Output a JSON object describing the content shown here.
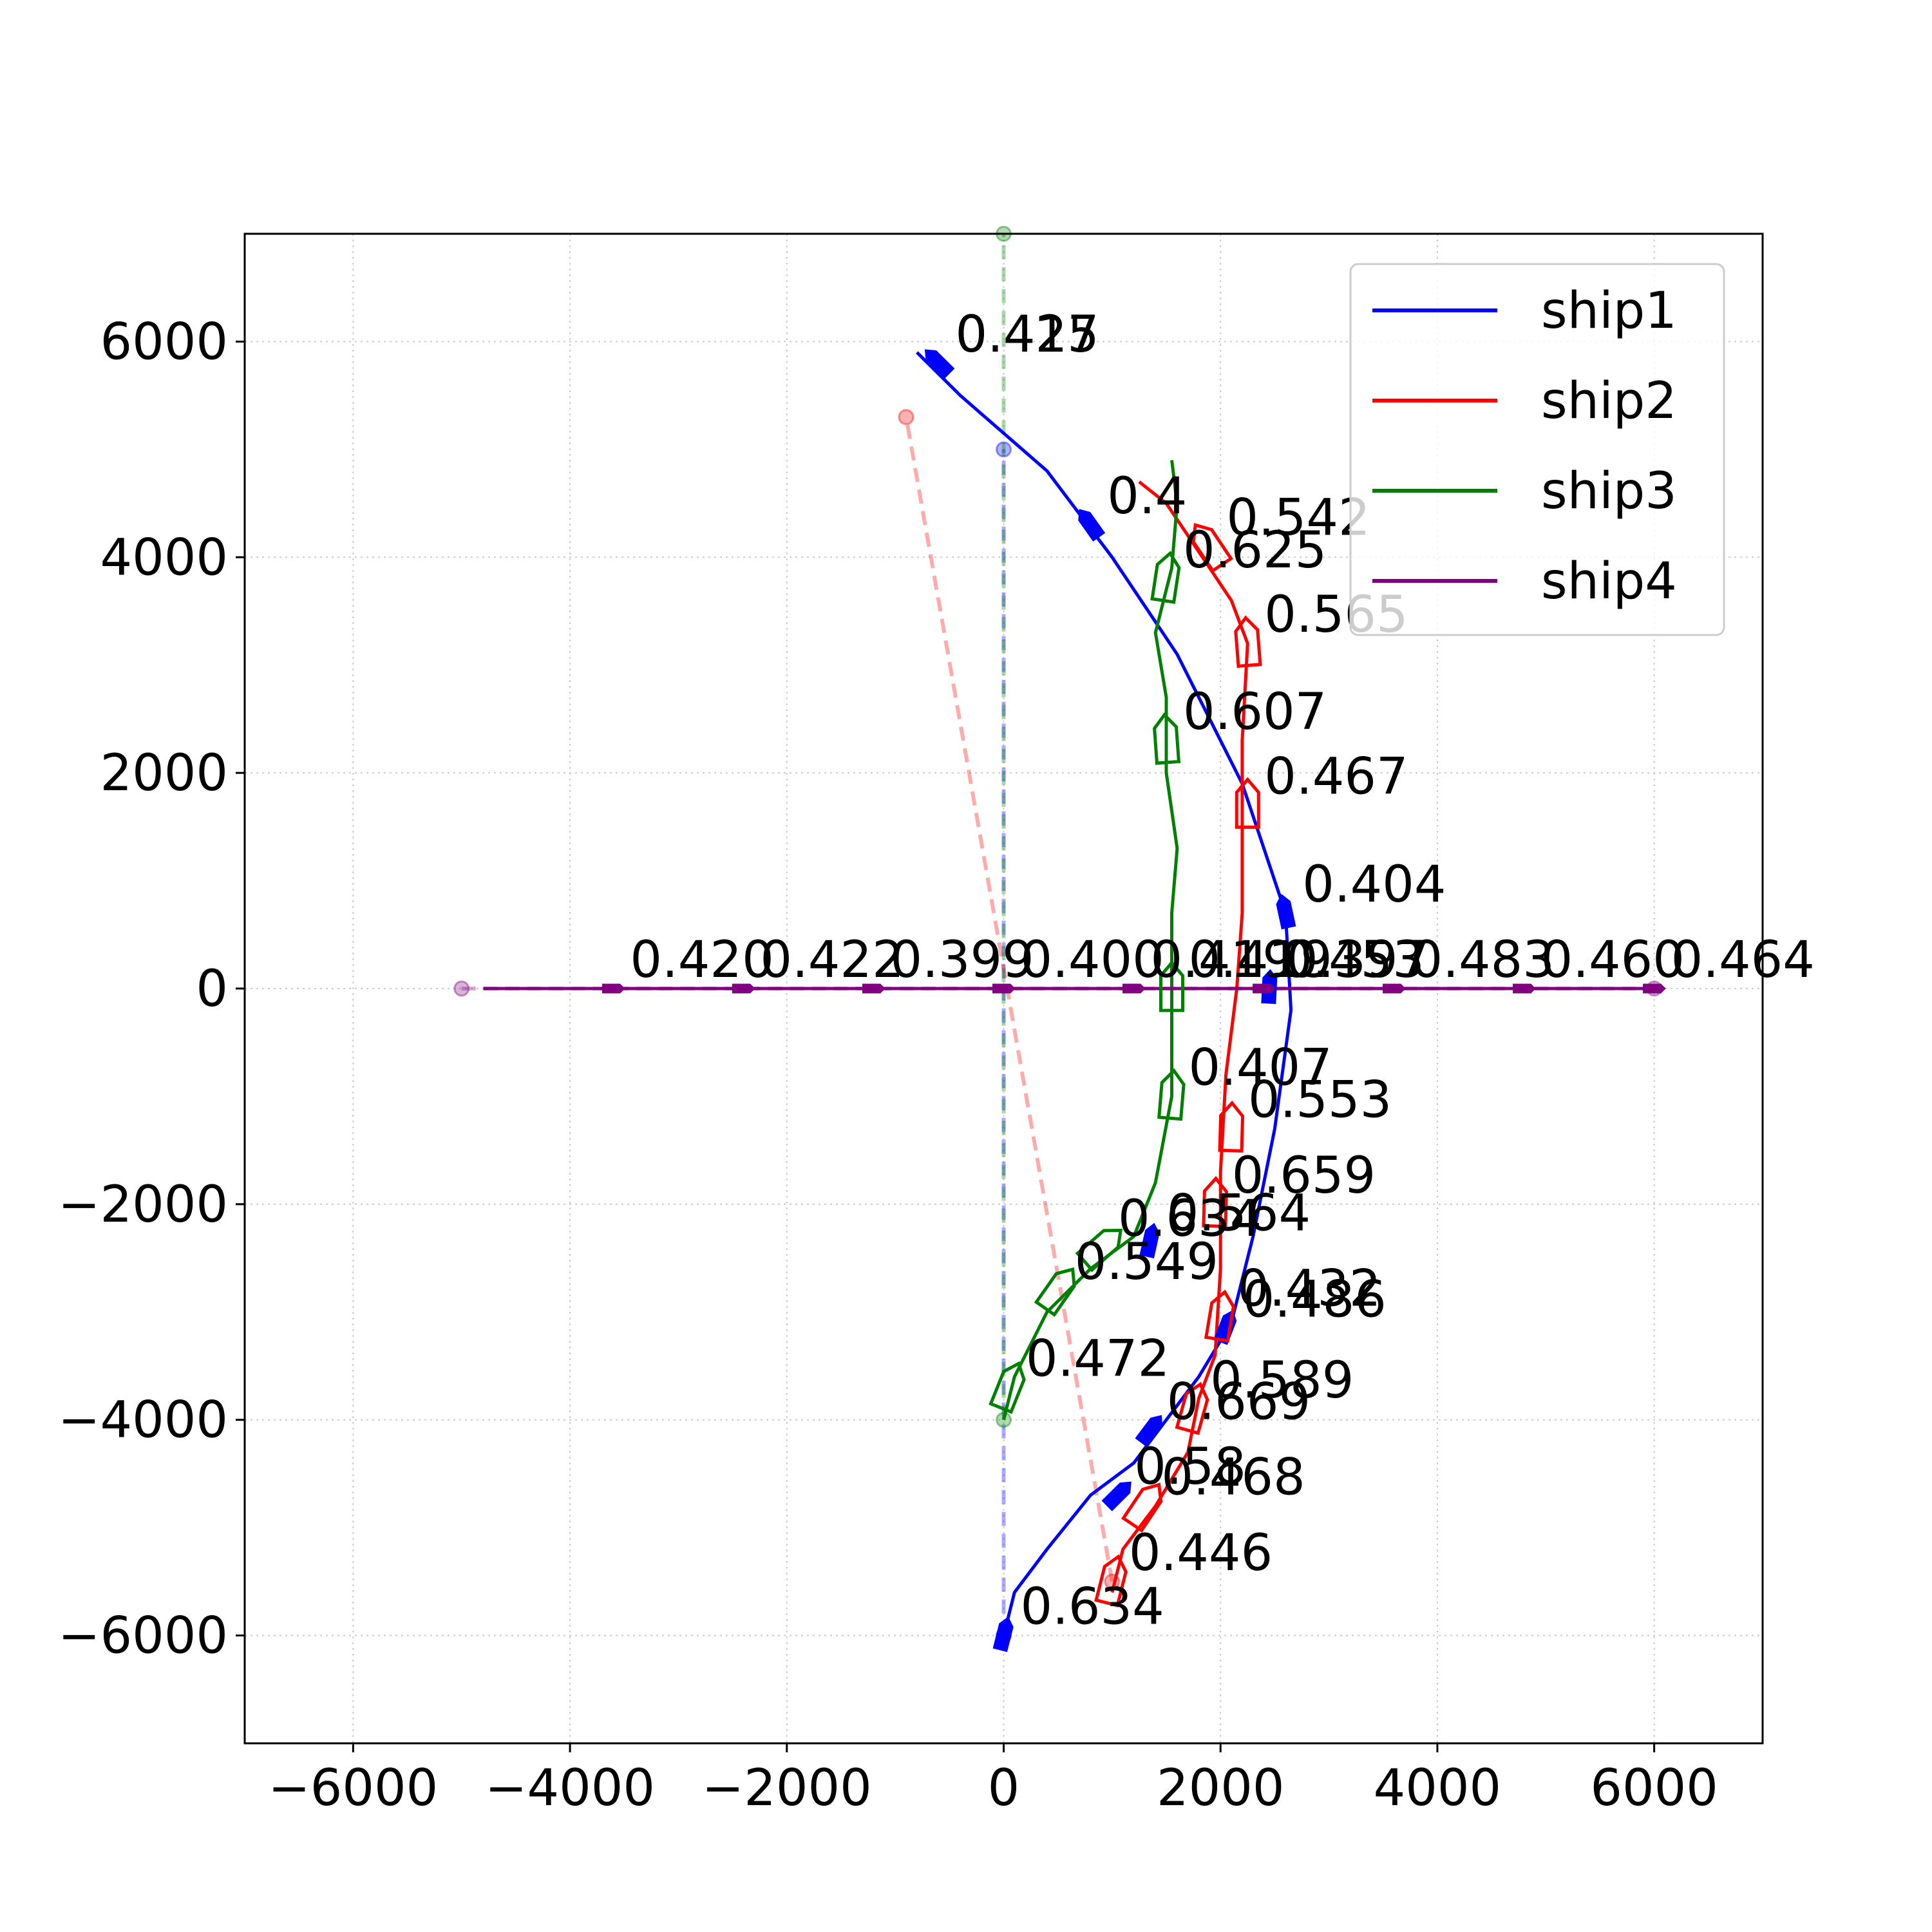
{
  "chart_data": {
    "type": "line",
    "title": "",
    "xlabel": "",
    "ylabel": "",
    "xlim": [
      -7000,
      7000
    ],
    "ylim": [
      -7000,
      7000
    ],
    "xticks": [
      -6000,
      -4000,
      -2000,
      0,
      2000,
      4000,
      6000
    ],
    "yticks": [
      -6000,
      -4000,
      -2000,
      0,
      2000,
      4000,
      6000
    ],
    "xtick_labels": [
      "−6000",
      "−4000",
      "−2000",
      "0",
      "2000",
      "4000",
      "6000"
    ],
    "ytick_labels": [
      "−6000",
      "−4000",
      "−2000",
      "0",
      "2000",
      "4000",
      "6000"
    ],
    "grid": true,
    "legend_position": "top-right",
    "series": [
      {
        "name": "ship1",
        "color": "#0000ff",
        "start": [
          0,
          -6000
        ],
        "goal": [
          0,
          5000
        ],
        "path": [
          [
            0,
            -6000
          ],
          [
            100,
            -5600
          ],
          [
            400,
            -5200
          ],
          [
            800,
            -4700
          ],
          [
            1200,
            -4400
          ],
          [
            1500,
            -4000
          ],
          [
            1800,
            -3600
          ],
          [
            2100,
            -3100
          ],
          [
            2300,
            -2300
          ],
          [
            2500,
            -1300
          ],
          [
            2650,
            -200
          ],
          [
            2600,
            700
          ],
          [
            2200,
            1900
          ],
          [
            1600,
            3100
          ],
          [
            1000,
            4000
          ],
          [
            400,
            4800
          ],
          [
            -400,
            5500
          ],
          [
            -800,
            5900
          ]
        ],
        "annotations": [
          {
            "text": "0.634",
            "x": 0,
            "y": -6000
          },
          {
            "text": "0.58",
            "x": 1050,
            "y": -4700
          },
          {
            "text": "0.669",
            "x": 1350,
            "y": -4100
          },
          {
            "text": "0.486",
            "x": 2050,
            "y": -3150
          },
          {
            "text": "0.564",
            "x": 1350,
            "y": -2350
          },
          {
            "text": "0.397",
            "x": 2450,
            "y": 0
          },
          {
            "text": "0.404",
            "x": 2600,
            "y": 700
          },
          {
            "text": "0.4",
            "x": 800,
            "y": 4300
          },
          {
            "text": "0.425",
            "x": -600,
            "y": 5800
          },
          {
            "text": "0.417",
            "x": -600,
            "y": 5800
          }
        ]
      },
      {
        "name": "ship2",
        "color": "#ff0000",
        "start": [
          1000,
          -5500
        ],
        "goal": [
          -900,
          5300
        ],
        "path": [
          [
            1000,
            -5600
          ],
          [
            1100,
            -5200
          ],
          [
            1400,
            -4800
          ],
          [
            1700,
            -4300
          ],
          [
            1800,
            -3800
          ],
          [
            1950,
            -3400
          ],
          [
            2000,
            -2600
          ],
          [
            2000,
            -1700
          ],
          [
            2050,
            -800
          ],
          [
            2150,
            0
          ],
          [
            2200,
            700
          ],
          [
            2200,
            1500
          ],
          [
            2200,
            2300
          ],
          [
            2250,
            3200
          ],
          [
            2100,
            3600
          ],
          [
            1900,
            3900
          ],
          [
            1500,
            4500
          ],
          [
            1250,
            4700
          ]
        ],
        "annotations": [
          {
            "text": "0.446",
            "x": 1000,
            "y": -5500
          },
          {
            "text": "0.468",
            "x": 1300,
            "y": -4800
          },
          {
            "text": "0.589",
            "x": 1750,
            "y": -3900
          },
          {
            "text": "0.432",
            "x": 2000,
            "y": -3050
          },
          {
            "text": "0.659",
            "x": 1950,
            "y": -2000
          },
          {
            "text": "0.553",
            "x": 2100,
            "y": -1300
          },
          {
            "text": "0.467",
            "x": 2250,
            "y": 1700
          },
          {
            "text": "0.565",
            "x": 2250,
            "y": 3200
          },
          {
            "text": "0.542",
            "x": 1900,
            "y": 4100
          }
        ]
      },
      {
        "name": "ship3",
        "color": "#008000",
        "start": [
          0,
          -4000
        ],
        "goal": [
          0,
          7000
        ],
        "path": [
          [
            0,
            -4000
          ],
          [
            100,
            -3600
          ],
          [
            400,
            -3000
          ],
          [
            800,
            -2600
          ],
          [
            1200,
            -2300
          ],
          [
            1400,
            -1800
          ],
          [
            1550,
            -1000
          ],
          [
            1550,
            0
          ],
          [
            1550,
            700
          ],
          [
            1600,
            1300
          ],
          [
            1500,
            2000
          ],
          [
            1500,
            2700
          ],
          [
            1400,
            3300
          ],
          [
            1450,
            3500
          ],
          [
            1550,
            3900
          ],
          [
            1600,
            4500
          ],
          [
            1550,
            4900
          ]
        ],
        "annotations": [
          {
            "text": "0.472",
            "x": 50,
            "y": -3700
          },
          {
            "text": "0.549",
            "x": 500,
            "y": -2800
          },
          {
            "text": "0.634",
            "x": 900,
            "y": -2400
          },
          {
            "text": "0.407",
            "x": 1550,
            "y": -1000
          },
          {
            "text": "0.419",
            "x": 1550,
            "y": 0
          },
          {
            "text": "0.607",
            "x": 1500,
            "y": 2300
          },
          {
            "text": "0.625",
            "x": 1500,
            "y": 3800
          }
        ]
      },
      {
        "name": "ship4",
        "color": "#800080",
        "start": [
          -5000,
          0
        ],
        "goal": [
          6000,
          0
        ],
        "path": [
          [
            -4800,
            0
          ],
          [
            6000,
            0
          ]
        ],
        "annotations": [
          {
            "text": "0.420",
            "x": -3600,
            "y": 0
          },
          {
            "text": "0.422",
            "x": -2400,
            "y": 0
          },
          {
            "text": "0.399",
            "x": -1200,
            "y": 0
          },
          {
            "text": "0.400",
            "x": 0,
            "y": 0
          },
          {
            "text": "0.419",
            "x": 1200,
            "y": 0
          },
          {
            "text": "0.453",
            "x": 2400,
            "y": 0
          },
          {
            "text": "0.483",
            "x": 3600,
            "y": 0
          },
          {
            "text": "0.460",
            "x": 4800,
            "y": 0
          },
          {
            "text": "0.464",
            "x": 6000,
            "y": 0
          }
        ]
      }
    ]
  }
}
